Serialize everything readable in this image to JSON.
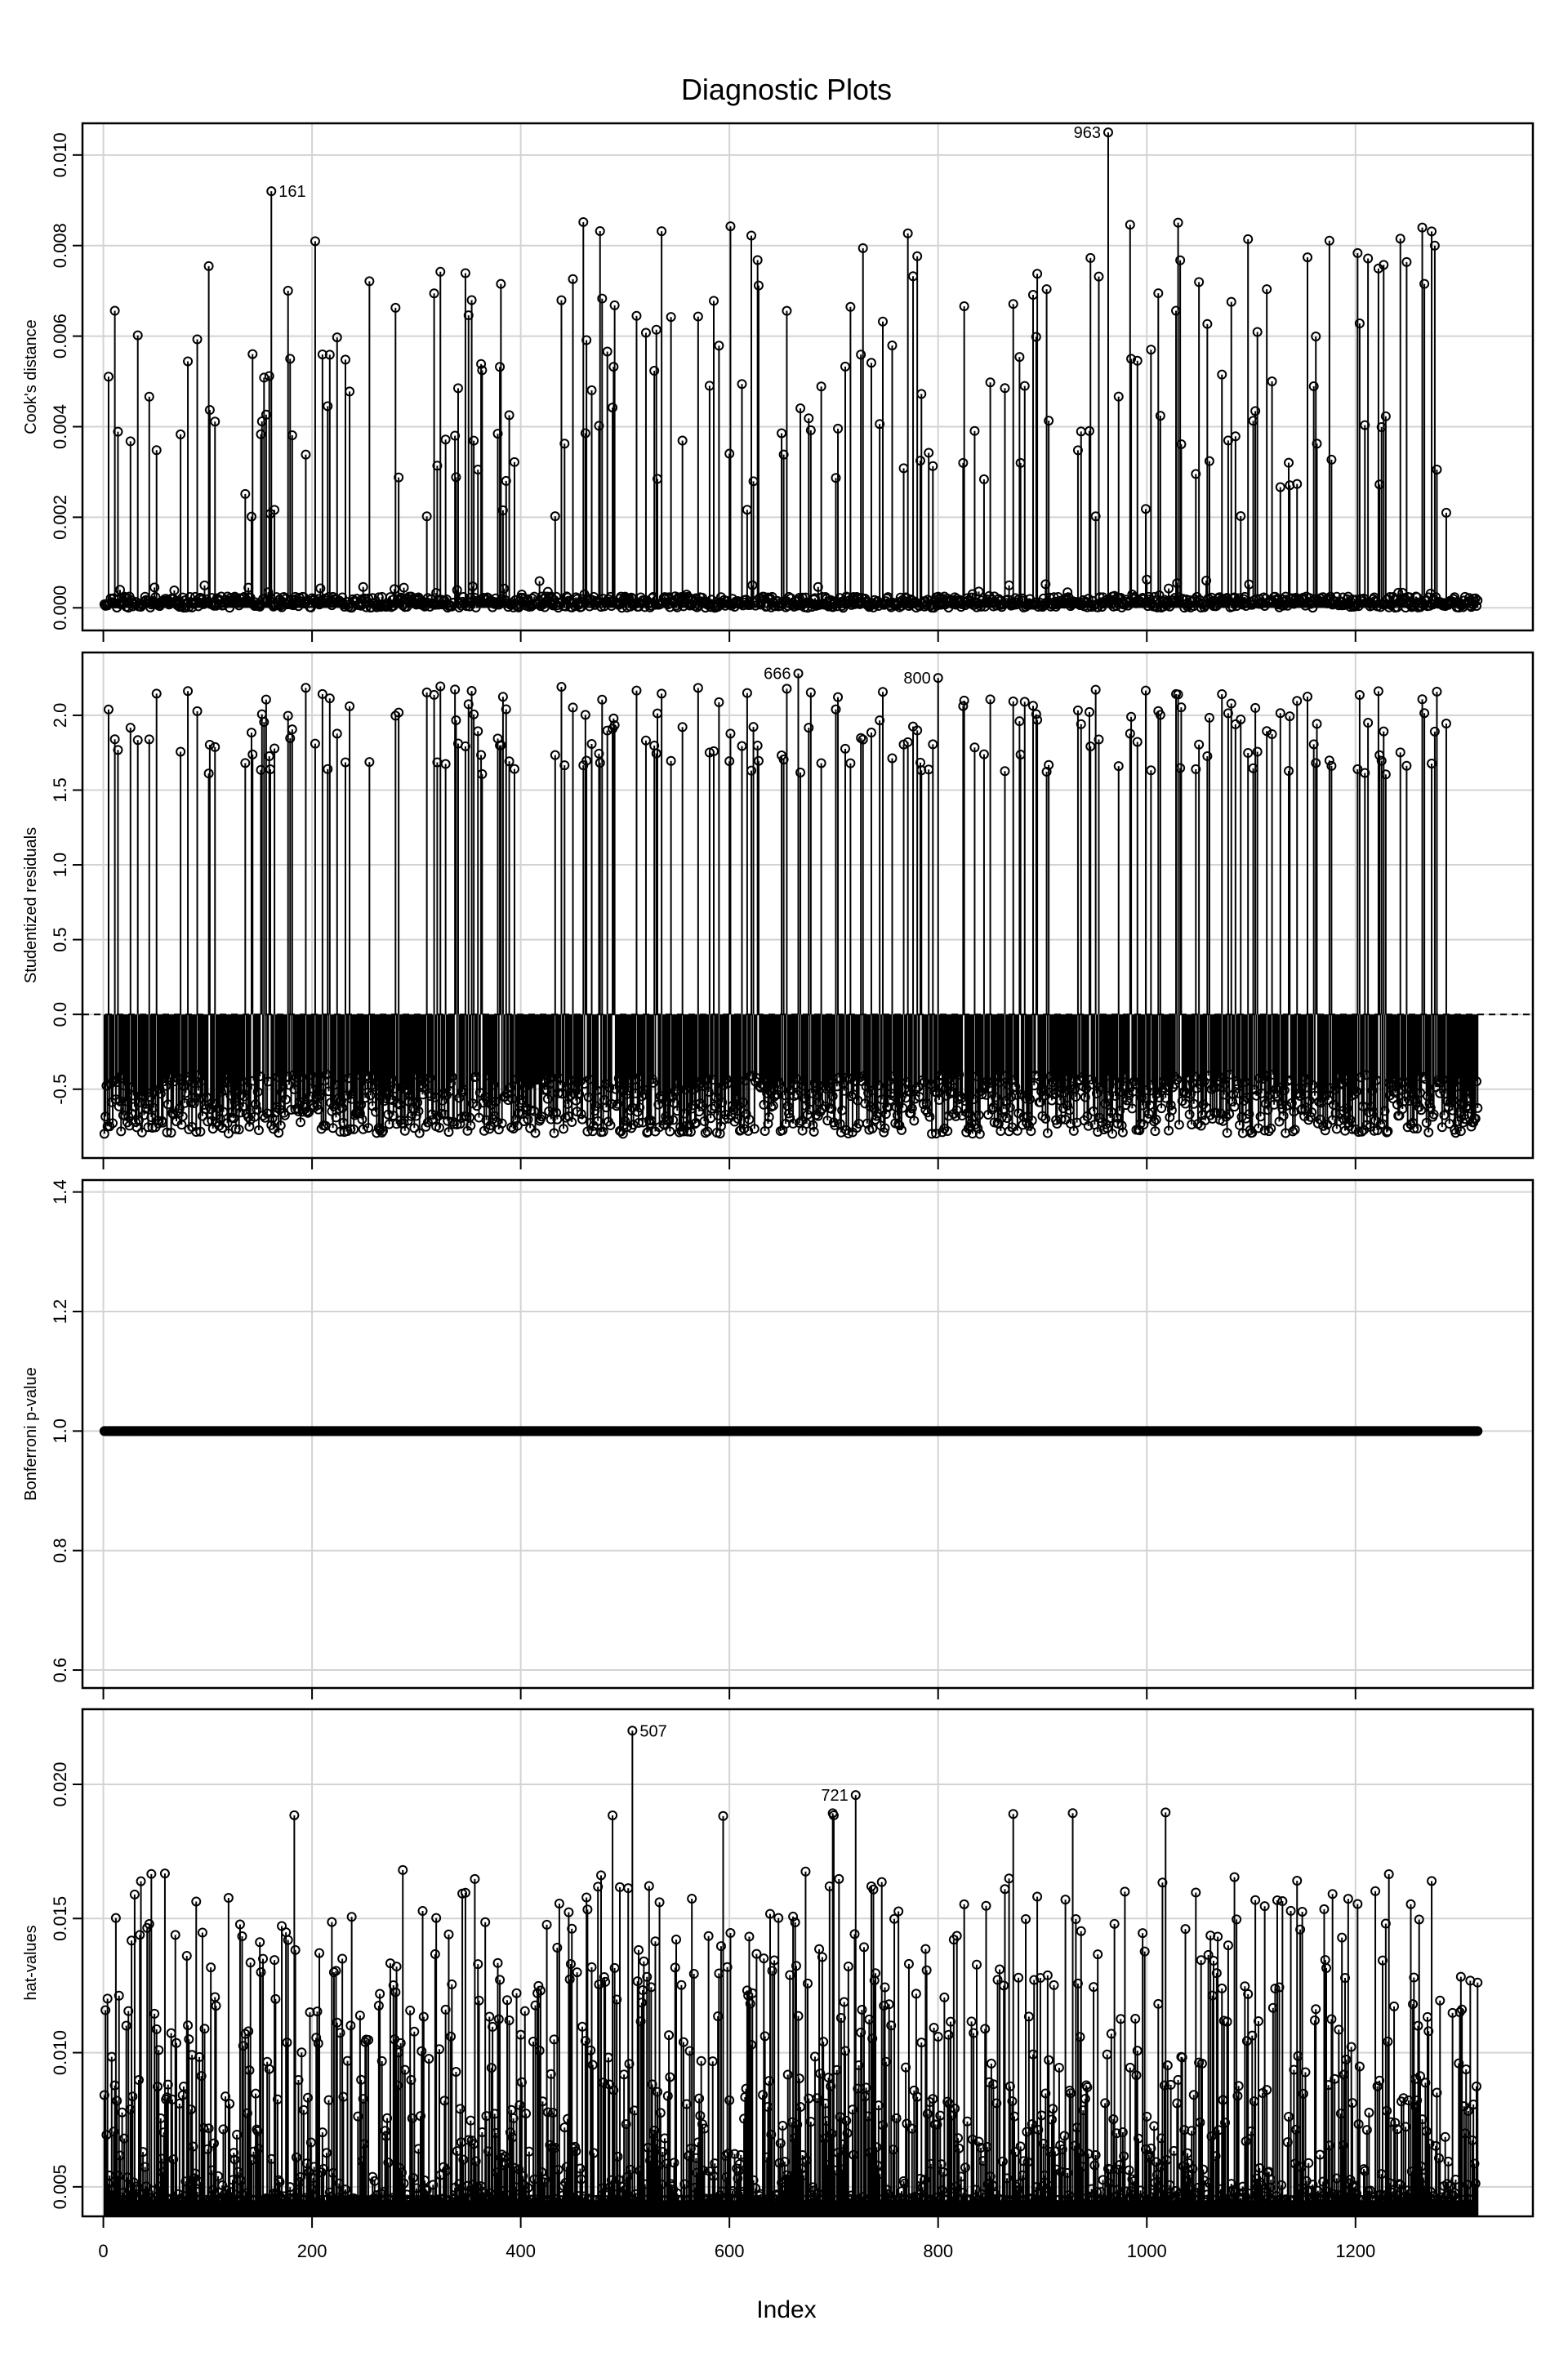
{
  "chart_data": {
    "title": "Diagnostic Plots",
    "xlabel": "Index",
    "type": "line",
    "n": 1317,
    "x_ticks": [
      0,
      200,
      400,
      600,
      800,
      1000,
      1200
    ],
    "xlim": [
      -20,
      1370
    ],
    "grid": true,
    "panels": [
      {
        "ylabel": "Cook's distance",
        "ylim": [
          -0.0005,
          0.0107
        ],
        "y_ticks": [
          0,
          0.002,
          0.004,
          0.006,
          0.008,
          0.01
        ],
        "y_tick_labels": [
          "0.000",
          "0.002",
          "0.004",
          "0.006",
          "0.008",
          "0.010"
        ],
        "baseline": 0,
        "labeled_points": [
          {
            "index": 161,
            "value": 0.0092,
            "label": "161",
            "side": "right"
          },
          {
            "index": 963,
            "value": 0.0105,
            "label": "963",
            "side": "left"
          }
        ]
      },
      {
        "ylabel": "Studentized residuals",
        "ylim": [
          -0.96,
          2.42
        ],
        "y_ticks": [
          -0.5,
          0,
          0.5,
          1,
          1.5,
          2
        ],
        "y_tick_labels": [
          "-0.5",
          "0.0",
          "0.5",
          "1.0",
          "1.5",
          "2.0"
        ],
        "baseline": 0,
        "reference_line": 0,
        "labeled_points": [
          {
            "index": 666,
            "value": 2.28,
            "label": "666",
            "side": "left"
          },
          {
            "index": 800,
            "value": 2.25,
            "label": "800",
            "side": "left"
          }
        ]
      },
      {
        "ylabel": "Bonferroni p-value",
        "ylim": [
          0.57,
          1.42
        ],
        "y_ticks": [
          0.6,
          0.8,
          1.0,
          1.2,
          1.4
        ],
        "y_tick_labels": [
          "0.6",
          "0.8",
          "1.0",
          "1.2",
          "1.4"
        ],
        "constant_value": 1.0,
        "labeled_points": []
      },
      {
        "ylabel": "hat-values",
        "ylim": [
          0.0039,
          0.0228
        ],
        "y_ticks": [
          0.005,
          0.01,
          0.015,
          0.02
        ],
        "y_tick_labels": [
          "0.005",
          "0.010",
          "0.015",
          "0.020"
        ],
        "baseline": 0,
        "labeled_points": [
          {
            "index": 507,
            "value": 0.022,
            "label": "507",
            "side": "right"
          },
          {
            "index": 721,
            "value": 0.0196,
            "label": "721",
            "side": "left"
          }
        ]
      }
    ],
    "colors": {
      "points": "#000000",
      "grid": "#d3d3d3",
      "frame": "#000000"
    }
  }
}
